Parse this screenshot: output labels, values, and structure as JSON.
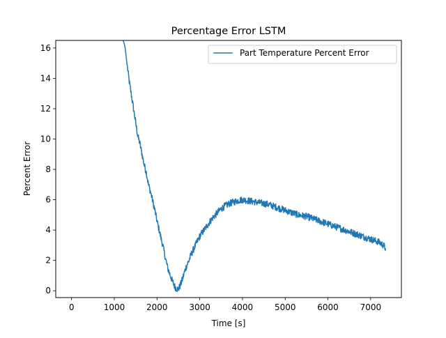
{
  "chart_data": {
    "type": "line",
    "title": "Percentage Error LSTM",
    "xlabel": "Time [s]",
    "ylabel": "Percent Error",
    "xlim": [
      -370,
      7720
    ],
    "ylim": [
      -0.45,
      16.5
    ],
    "xticks": [
      0,
      1000,
      2000,
      3000,
      4000,
      5000,
      6000,
      7000
    ],
    "yticks": [
      0,
      2,
      4,
      6,
      8,
      10,
      12,
      14,
      16
    ],
    "grid": false,
    "legend_position": "top-right",
    "series": [
      {
        "name": "Part Temperature Percent Error",
        "color": "#1f77b4",
        "x": [
          1200,
          1250,
          1300,
          1350,
          1400,
          1450,
          1500,
          1550,
          1600,
          1650,
          1700,
          1750,
          1800,
          1850,
          1900,
          1950,
          2000,
          2050,
          2100,
          2150,
          2200,
          2250,
          2300,
          2350,
          2400,
          2450,
          2500,
          2550,
          2600,
          2650,
          2700,
          2750,
          2800,
          2850,
          2900,
          2950,
          3000,
          3100,
          3200,
          3300,
          3400,
          3500,
          3600,
          3700,
          3800,
          3900,
          4000,
          4100,
          4200,
          4300,
          4400,
          4500,
          4600,
          4700,
          4800,
          4900,
          5000,
          5100,
          5200,
          5300,
          5400,
          5500,
          5600,
          5700,
          5800,
          5900,
          6000,
          6100,
          6200,
          6300,
          6400,
          6500,
          6600,
          6700,
          6800,
          6900,
          7000,
          7100,
          7200,
          7300,
          7350
        ],
        "y": [
          16.6,
          16.1,
          14.9,
          13.8,
          12.9,
          12.0,
          11.1,
          10.2,
          9.7,
          9.0,
          8.3,
          7.8,
          7.0,
          6.5,
          5.9,
          5.3,
          4.6,
          4.0,
          3.4,
          2.8,
          2.1,
          1.5,
          1.1,
          0.7,
          0.35,
          0.15,
          0.1,
          0.4,
          0.8,
          1.3,
          1.7,
          2.0,
          2.4,
          2.7,
          3.0,
          3.3,
          3.6,
          4.0,
          4.4,
          4.8,
          5.1,
          5.4,
          5.6,
          5.75,
          5.85,
          5.95,
          6.0,
          5.95,
          5.9,
          5.85,
          5.8,
          5.75,
          5.7,
          5.6,
          5.5,
          5.4,
          5.3,
          5.2,
          5.1,
          5.0,
          4.95,
          4.9,
          4.8,
          4.7,
          4.6,
          4.5,
          4.4,
          4.3,
          4.2,
          4.1,
          4.0,
          3.9,
          3.8,
          3.7,
          3.6,
          3.5,
          3.4,
          3.3,
          3.2,
          3.0,
          2.8
        ]
      }
    ]
  }
}
